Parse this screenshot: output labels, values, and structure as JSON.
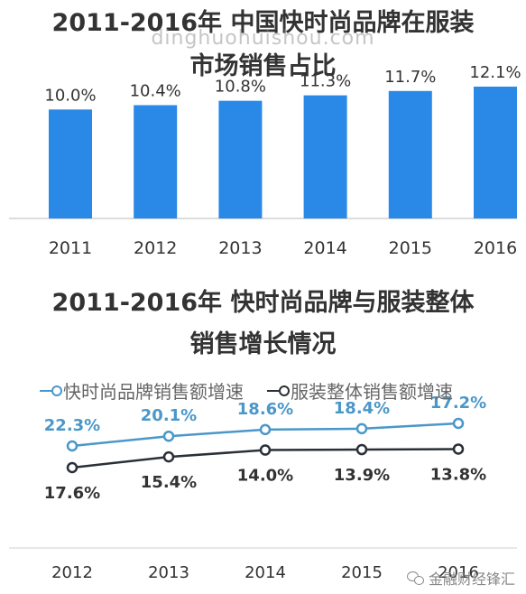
{
  "watermark": "dinghuohuishou.com",
  "footer": {
    "source": "金融财经锋汇",
    "icon": "wechat-icon"
  },
  "colors": {
    "bar": "#2a88e6",
    "line_fast": "#4a97c9",
    "line_total": "#2a2f38",
    "axis": "#d0d0d0",
    "text": "#333333"
  },
  "chart_data": [
    {
      "type": "bar",
      "title": [
        "2011-2016年 中国快时尚品牌在服装",
        "市场销售占比"
      ],
      "categories": [
        "2011",
        "2012",
        "2013",
        "2014",
        "2015",
        "2016"
      ],
      "values": [
        10.0,
        10.4,
        10.8,
        11.3,
        11.7,
        12.1
      ],
      "labels": [
        "10.0%",
        "10.4%",
        "10.8%",
        "11.3%",
        "11.7%",
        "12.1%"
      ],
      "unit": "%",
      "ylim": [
        0,
        14.5
      ],
      "grid": false
    },
    {
      "type": "line",
      "title": [
        "2011-2016年 快时尚品牌与服装整体",
        "销售增长情况"
      ],
      "categories": [
        "2012",
        "2013",
        "2014",
        "2015",
        "2016"
      ],
      "legend_position": "top",
      "series": [
        {
          "name": "快时尚品牌销售额增速",
          "values": [
            22.3,
            20.1,
            18.6,
            18.4,
            17.2
          ],
          "labels": [
            "22.3%",
            "20.1%",
            "18.6%",
            "18.4%",
            "17.2%"
          ]
        },
        {
          "name": "服装整体销售额增速",
          "values": [
            17.6,
            15.4,
            14.0,
            13.9,
            13.8
          ],
          "labels": [
            "17.6%",
            "15.4%",
            "14.0%",
            "13.9%",
            "13.8%"
          ]
        }
      ],
      "unit": "%",
      "grid": false
    }
  ]
}
